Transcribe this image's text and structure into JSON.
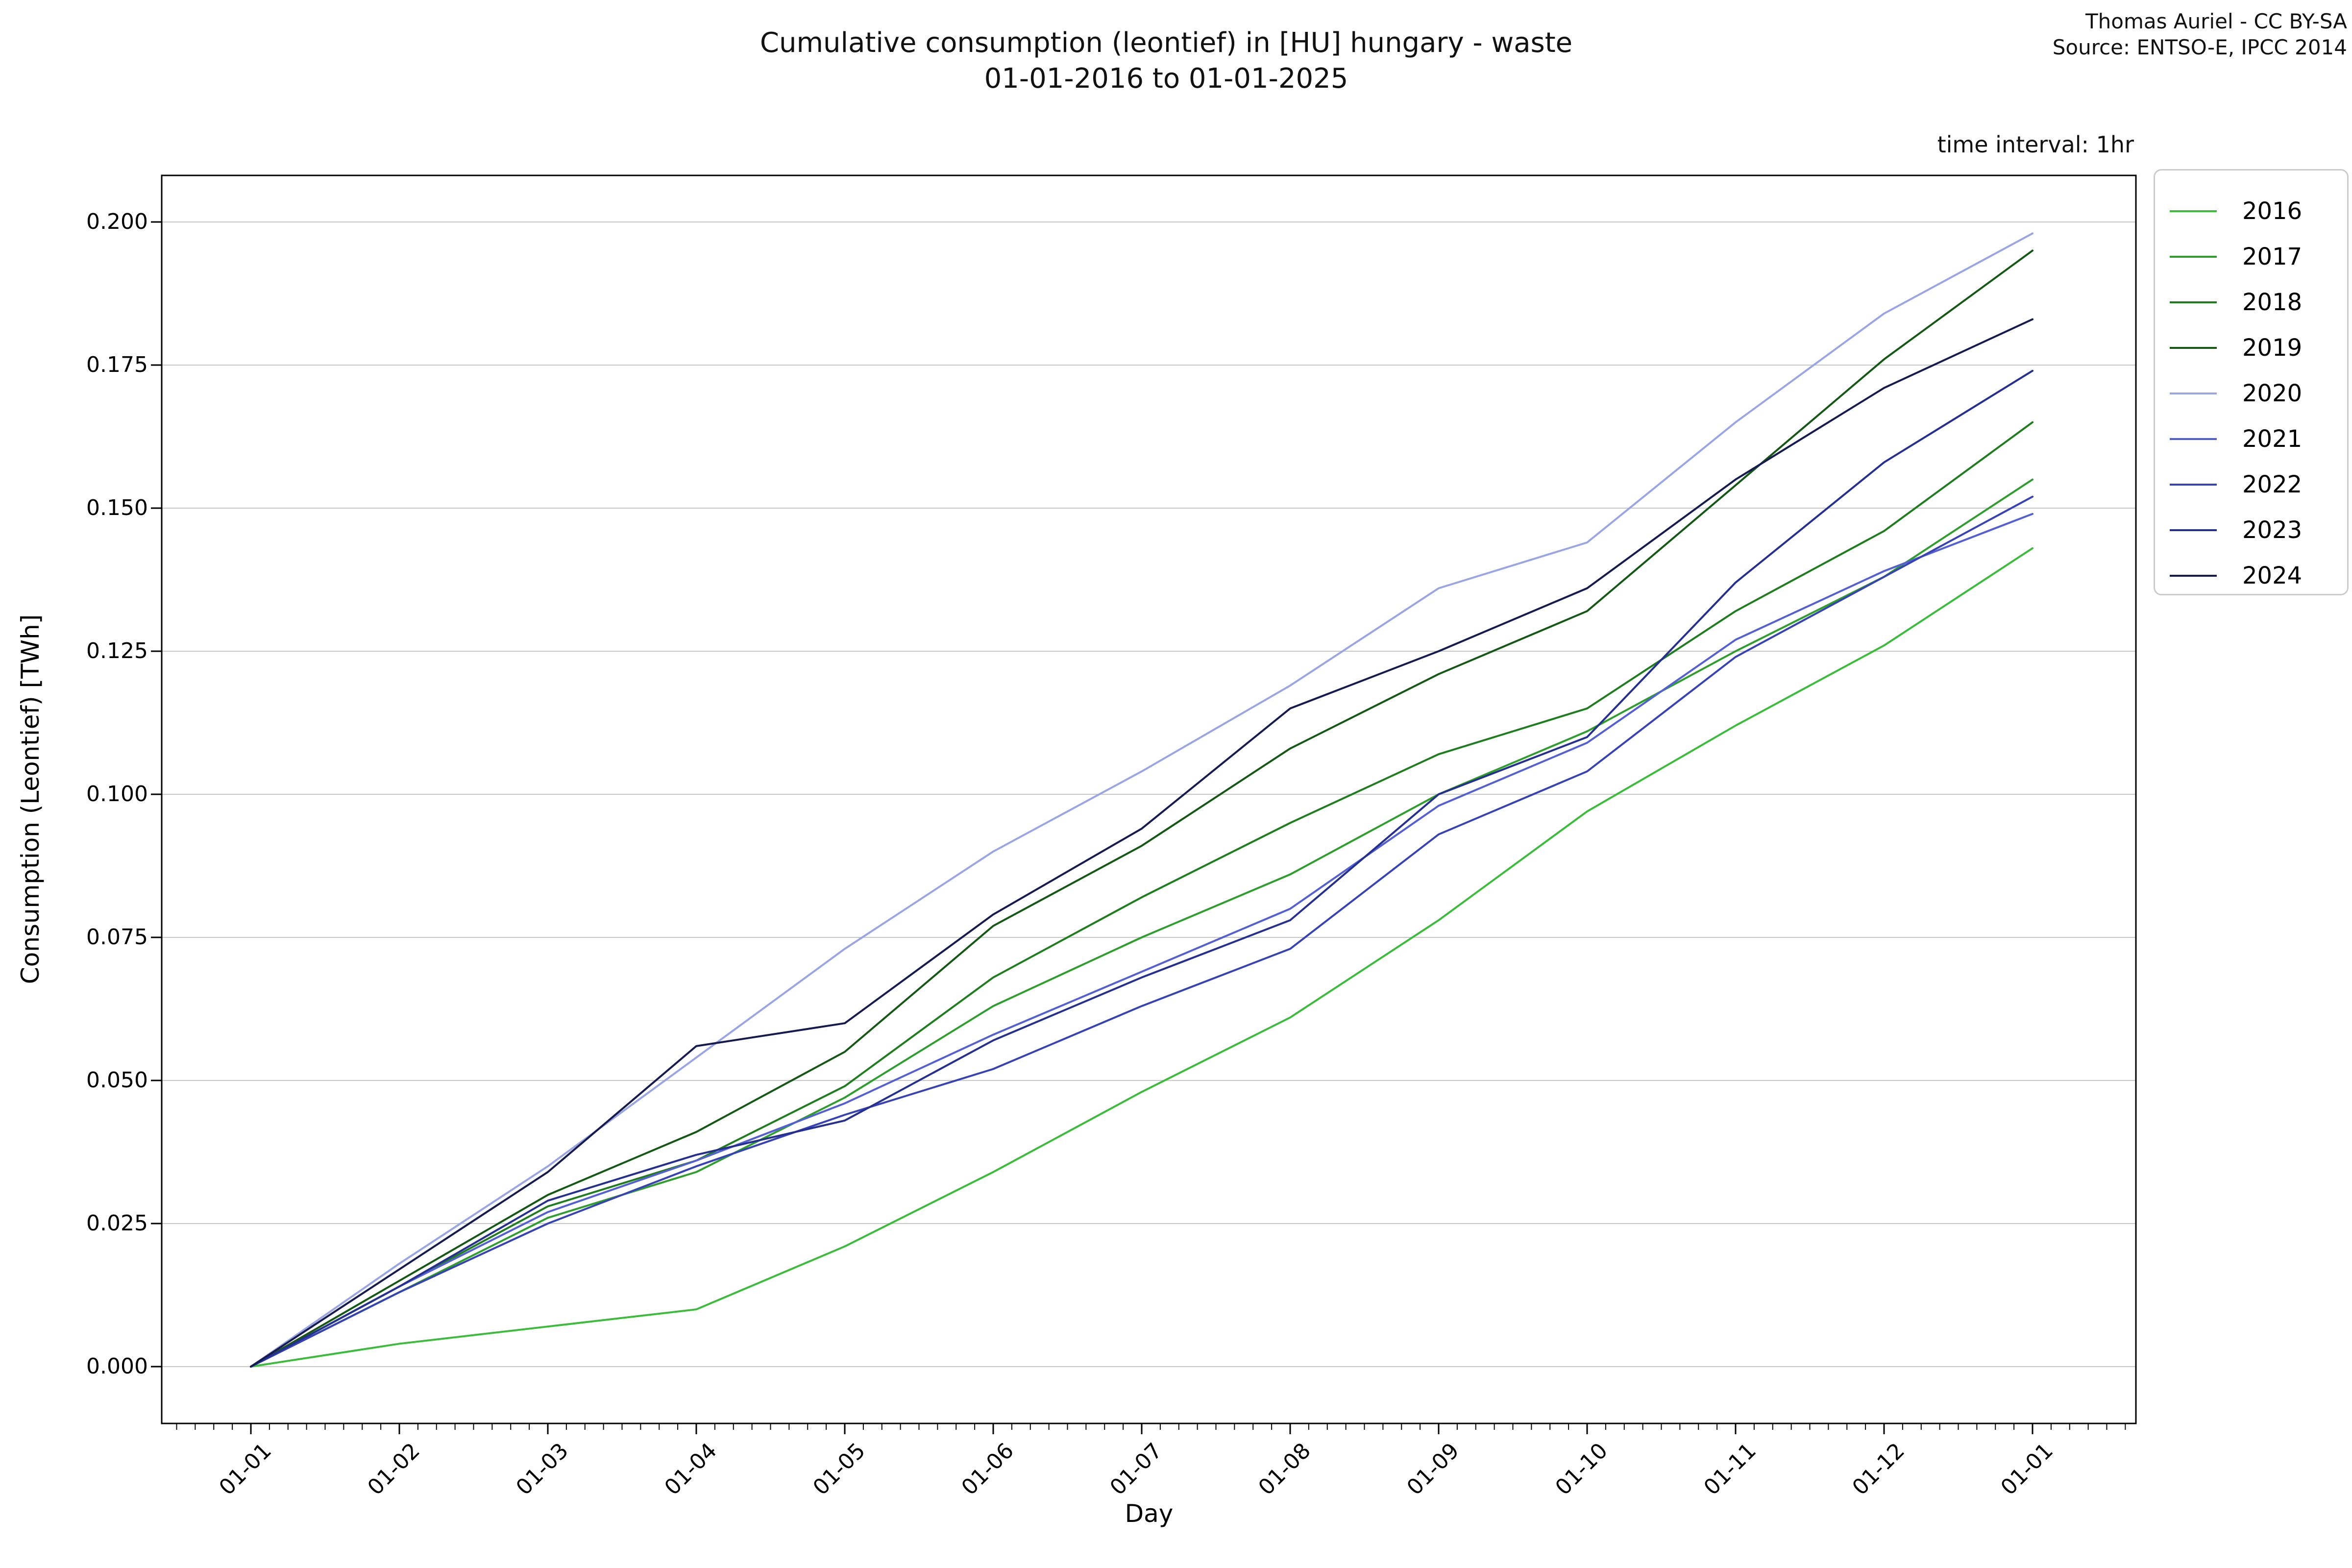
{
  "header": {
    "title_line1": "Cumulative consumption (leontief) in [HU] hungary - waste",
    "title_line2": "01-01-2016 to 01-01-2025",
    "attribution_line1": "Thomas Auriel - CC BY-SA",
    "attribution_line2": "Source: ENTSO-E, IPCC 2014",
    "annotation": "time interval: 1hr"
  },
  "legend": {
    "items": [
      {
        "label": "2016",
        "color": "#3cbb3c"
      },
      {
        "label": "2017",
        "color": "#2f9e2f"
      },
      {
        "label": "2018",
        "color": "#1f7d1f"
      },
      {
        "label": "2019",
        "color": "#155815"
      },
      {
        "label": "2020",
        "color": "#9aa5e4"
      },
      {
        "label": "2021",
        "color": "#5460d2"
      },
      {
        "label": "2022",
        "color": "#3743b4"
      },
      {
        "label": "2023",
        "color": "#252f8f"
      },
      {
        "label": "2024",
        "color": "#151a4f"
      }
    ]
  },
  "chart_data": {
    "type": "line",
    "title": "Cumulative consumption (leontief) in [HU] hungary - waste 01-01-2016 to 01-01-2025",
    "xlabel": "Day",
    "ylabel": "Consumption (Leontief) [TWh]",
    "x_tick_labels": [
      "01-01",
      "01-02",
      "01-03",
      "01-04",
      "01-05",
      "01-06",
      "01-07",
      "01-08",
      "01-09",
      "01-10",
      "01-11",
      "01-12",
      "01-01"
    ],
    "y_ticks": [
      0.0,
      0.025,
      0.05,
      0.075,
      0.1,
      0.125,
      0.15,
      0.175,
      0.2
    ],
    "y_tick_labels": [
      "0.000",
      "0.025",
      "0.050",
      "0.075",
      "0.100",
      "0.125",
      "0.150",
      "0.175",
      "0.200"
    ],
    "xlim_months": [
      -0.6,
      12.7
    ],
    "ylim": [
      -0.01,
      0.208
    ],
    "grid": true,
    "grid_color": "#c8c8c8",
    "legend_position": "outside upper right",
    "x_months": [
      0,
      1,
      2,
      3,
      4,
      5,
      6,
      7,
      8,
      9,
      10,
      11,
      12
    ],
    "series": [
      {
        "name": "2016",
        "color": "#3cbb3c",
        "values": [
          0.0,
          0.004,
          0.007,
          0.01,
          0.021,
          0.034,
          0.048,
          0.061,
          0.078,
          0.097,
          0.112,
          0.126,
          0.143
        ]
      },
      {
        "name": "2017",
        "color": "#2f9e2f",
        "values": [
          0.0,
          0.013,
          0.026,
          0.034,
          0.047,
          0.063,
          0.075,
          0.086,
          0.1,
          0.111,
          0.125,
          0.138,
          0.155
        ]
      },
      {
        "name": "2018",
        "color": "#1f7d1f",
        "values": [
          0.0,
          0.014,
          0.028,
          0.036,
          0.049,
          0.068,
          0.082,
          0.095,
          0.107,
          0.115,
          0.132,
          0.146,
          0.165
        ]
      },
      {
        "name": "2019",
        "color": "#155815",
        "values": [
          0.0,
          0.015,
          0.03,
          0.041,
          0.055,
          0.077,
          0.091,
          0.108,
          0.121,
          0.132,
          0.154,
          0.176,
          0.195
        ]
      },
      {
        "name": "2020",
        "color": "#9aa5e4",
        "values": [
          0.0,
          0.018,
          0.035,
          0.054,
          0.073,
          0.09,
          0.104,
          0.119,
          0.136,
          0.144,
          0.165,
          0.184,
          0.198
        ]
      },
      {
        "name": "2021",
        "color": "#5460d2",
        "values": [
          0.0,
          0.014,
          0.027,
          0.036,
          0.046,
          0.058,
          0.069,
          0.08,
          0.098,
          0.109,
          0.127,
          0.139,
          0.149
        ]
      },
      {
        "name": "2022",
        "color": "#3743b4",
        "values": [
          0.0,
          0.013,
          0.025,
          0.035,
          0.044,
          0.052,
          0.063,
          0.073,
          0.093,
          0.104,
          0.124,
          0.138,
          0.152
        ]
      },
      {
        "name": "2023",
        "color": "#252f8f",
        "values": [
          0.0,
          0.014,
          0.029,
          0.037,
          0.043,
          0.057,
          0.068,
          0.078,
          0.1,
          0.11,
          0.137,
          0.158,
          0.174
        ]
      },
      {
        "name": "2024",
        "color": "#151a4f",
        "values": [
          0.0,
          0.017,
          0.034,
          0.056,
          0.06,
          0.079,
          0.094,
          0.115,
          0.125,
          0.136,
          0.155,
          0.171,
          0.183
        ]
      }
    ]
  }
}
